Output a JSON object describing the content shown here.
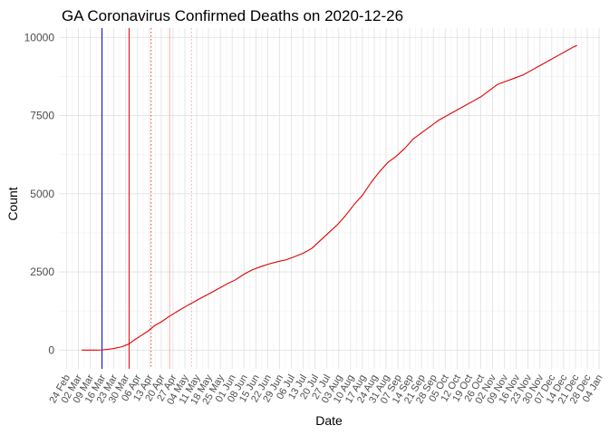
{
  "chart_data": {
    "type": "line",
    "title": "GA Coronavirus Confirmed Deaths on 2020-12-26",
    "xlabel": "Date",
    "ylabel": "Count",
    "ylim": [
      -600,
      10300
    ],
    "xlim_days": [
      -4.5,
      315.5
    ],
    "x_origin": "2020-02-24",
    "y_ticks": [
      0,
      2500,
      5000,
      7500,
      10000
    ],
    "y_tick_labels": [
      "0",
      "2500",
      "5000",
      "7500",
      "10000"
    ],
    "x_tick_labels": [
      "24 Feb",
      "02 Mar",
      "09 Mar",
      "16 Mar",
      "23 Mar",
      "30 Mar",
      "06 Apr",
      "13 Apr",
      "20 Apr",
      "27 Apr",
      "04 May",
      "11 May",
      "18 May",
      "25 May",
      "01 Jun",
      "08 Jun",
      "15 Jun",
      "22 Jun",
      "29 Jun",
      "06 Jul",
      "13 Jul",
      "20 Jul",
      "27 Jul",
      "03 Aug",
      "10 Aug",
      "17 Aug",
      "24 Aug",
      "31 Aug",
      "07 Sep",
      "14 Sep",
      "21 Sep",
      "28 Sep",
      "05 Oct",
      "12 Oct",
      "19 Oct",
      "26 Oct",
      "02 Nov",
      "09 Nov",
      "16 Nov",
      "23 Nov",
      "30 Nov",
      "07 Dec",
      "14 Dec",
      "21 Dec",
      "28 Dec",
      "04 Jan"
    ],
    "grid": true,
    "vlines": [
      {
        "name": "blue-vline",
        "day": 21,
        "color": "#0000cc",
        "style": "solid"
      },
      {
        "name": "red-vline",
        "day": 37,
        "color": "#e00000",
        "style": "solid"
      },
      {
        "name": "red-dotted-vline",
        "day": 50,
        "color": "#e04040",
        "style": "dotted"
      },
      {
        "name": "pink-vline",
        "day": 61,
        "color": "#f4b0b0",
        "style": "solid"
      },
      {
        "name": "pink-dotted-vline",
        "day": 74,
        "color": "#f4b0b0",
        "style": "dotted"
      }
    ],
    "series": [
      {
        "name": "Confirmed Deaths",
        "color": "#e00000",
        "x_days": [
          9,
          14,
          18,
          21,
          24,
          28,
          33,
          37,
          40,
          44,
          48,
          52,
          56,
          60,
          65,
          70,
          75,
          80,
          85,
          90,
          95,
          100,
          105,
          110,
          115,
          120,
          125,
          130,
          135,
          140,
          145,
          150,
          155,
          160,
          165,
          170,
          175,
          180,
          185,
          190,
          195,
          200,
          205,
          210,
          215,
          220,
          225,
          230,
          235,
          240,
          245,
          250,
          255,
          260,
          265,
          270,
          275,
          280,
          285,
          290,
          295,
          300,
          302
        ],
        "values": [
          0,
          0,
          0,
          5,
          20,
          50,
          110,
          200,
          320,
          460,
          600,
          780,
          900,
          1050,
          1220,
          1380,
          1530,
          1680,
          1820,
          1970,
          2120,
          2250,
          2430,
          2570,
          2670,
          2760,
          2830,
          2890,
          2990,
          3100,
          3250,
          3500,
          3750,
          4000,
          4300,
          4650,
          4950,
          5350,
          5700,
          6000,
          6200,
          6450,
          6750,
          6950,
          7150,
          7350,
          7500,
          7650,
          7800,
          7950,
          8100,
          8300,
          8500,
          8600,
          8700,
          8800,
          8950,
          9100,
          9250,
          9400,
          9550,
          9700,
          9750
        ]
      }
    ]
  }
}
